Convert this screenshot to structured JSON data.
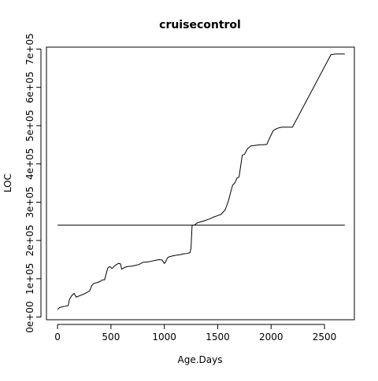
{
  "chart_data": {
    "type": "line",
    "title": "cruisecontrol",
    "xlabel": "Age.Days",
    "ylabel": "LOC",
    "xlim": [
      -104,
      2780
    ],
    "ylim": [
      -7000,
      705000
    ],
    "x_ticks": [
      0,
      500,
      1000,
      1500,
      2000,
      2500
    ],
    "x_tick_labels": [
      "0",
      "500",
      "1000",
      "1500",
      "2000",
      "2500"
    ],
    "y_ticks": [
      0,
      100000,
      200000,
      300000,
      400000,
      500000,
      600000,
      700000
    ],
    "y_tick_labels": [
      "0e+00",
      "1e+05",
      "2e+05",
      "3e+05",
      "4e+05",
      "5e+05",
      "6e+05",
      "7e+05"
    ],
    "grid": false,
    "series": [
      {
        "style": "solid-line",
        "color": "#000000",
        "x": [
          0,
          20,
          70,
          100,
          110,
          130,
          155,
          175,
          200,
          230,
          260,
          280,
          300,
          320,
          340,
          370,
          400,
          420,
          440,
          470,
          490,
          510,
          540,
          570,
          590,
          600,
          630,
          660,
          700,
          730,
          760,
          800,
          850,
          880,
          910,
          950,
          980,
          1000,
          1010,
          1030,
          1050,
          1100,
          1150,
          1180,
          1210,
          1240,
          1250,
          1260,
          1280,
          1310,
          1330,
          1370,
          1400,
          1430,
          1460,
          1500,
          1530,
          1570,
          1600,
          1620,
          1640,
          1660,
          1680,
          1700,
          1730,
          1750,
          1780,
          1810,
          1840,
          1870,
          1900,
          1930,
          1960,
          1990,
          2020,
          2050,
          2070,
          2100,
          2150,
          2200,
          2560,
          2600,
          2690
        ],
        "y": [
          20000,
          25000,
          28000,
          30000,
          45000,
          55000,
          62000,
          52000,
          55000,
          58000,
          62000,
          65000,
          68000,
          82000,
          88000,
          90000,
          93000,
          97000,
          97000,
          128000,
          132000,
          127000,
          135000,
          140000,
          139000,
          125000,
          130000,
          132000,
          133000,
          135000,
          137000,
          143000,
          144000,
          146000,
          148000,
          150000,
          149000,
          140000,
          143000,
          155000,
          158000,
          161000,
          163000,
          165000,
          166000,
          168000,
          180000,
          240000,
          240000,
          246000,
          248000,
          251000,
          254000,
          257000,
          261000,
          265000,
          268000,
          280000,
          303000,
          325000,
          345000,
          350000,
          363000,
          366000,
          423000,
          425000,
          440000,
          447000,
          448000,
          449000,
          450000,
          450000,
          451000,
          470000,
          487000,
          492000,
          494000,
          496000,
          496000,
          496000,
          685000,
          687000,
          687000
        ]
      },
      {
        "style": "solid-line",
        "color": "#000000",
        "x": [
          0,
          2690
        ],
        "y": [
          240000,
          240000
        ]
      }
    ]
  }
}
